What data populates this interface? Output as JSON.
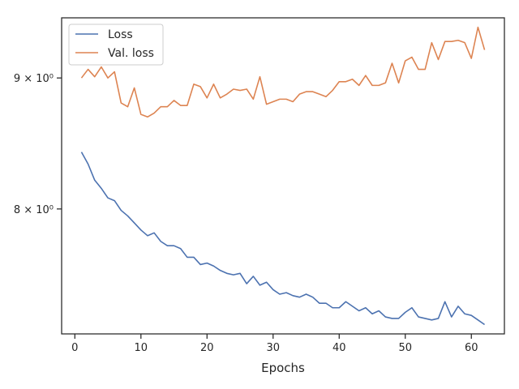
{
  "chart_data": {
    "type": "line",
    "xlabel": "Epochs",
    "ylabel": "",
    "y_scale": "log",
    "xlim": [
      -2,
      65
    ],
    "ylim": [
      7.15,
      9.5
    ],
    "grid": false,
    "legend_position": "top-left",
    "x_ticks": [
      0,
      10,
      20,
      30,
      40,
      50,
      60
    ],
    "x_tick_labels": [
      "0",
      "10",
      "20",
      "30",
      "40",
      "50",
      "60"
    ],
    "y_ticks": [
      8,
      9
    ],
    "y_tick_labels": [
      "8 × 10⁰",
      "9 × 10⁰"
    ],
    "x": [
      1,
      2,
      3,
      4,
      5,
      6,
      7,
      8,
      9,
      10,
      11,
      12,
      13,
      14,
      15,
      16,
      17,
      18,
      19,
      20,
      21,
      22,
      23,
      24,
      25,
      26,
      27,
      28,
      29,
      30,
      31,
      32,
      33,
      34,
      35,
      36,
      37,
      38,
      39,
      40,
      41,
      42,
      43,
      44,
      45,
      46,
      47,
      48,
      49,
      50,
      51,
      52,
      53,
      54,
      55,
      56,
      57,
      58,
      59,
      60,
      61,
      62
    ],
    "series": [
      {
        "name": "Loss",
        "color": "#4c72b0",
        "values": [
          8.42,
          8.33,
          8.21,
          8.15,
          8.08,
          8.06,
          7.99,
          7.95,
          7.9,
          7.85,
          7.81,
          7.83,
          7.77,
          7.74,
          7.74,
          7.72,
          7.66,
          7.66,
          7.61,
          7.62,
          7.6,
          7.57,
          7.55,
          7.54,
          7.55,
          7.48,
          7.53,
          7.47,
          7.49,
          7.44,
          7.41,
          7.42,
          7.4,
          7.39,
          7.41,
          7.39,
          7.35,
          7.35,
          7.32,
          7.32,
          7.36,
          7.33,
          7.3,
          7.32,
          7.28,
          7.3,
          7.26,
          7.25,
          7.25,
          7.29,
          7.32,
          7.26,
          7.25,
          7.24,
          7.25,
          7.36,
          7.26,
          7.33,
          7.28,
          7.27,
          7.24,
          7.21
        ]
      },
      {
        "name": "Val. loss",
        "color": "#dd8452",
        "values": [
          9.0,
          9.07,
          9.01,
          9.09,
          9.0,
          9.05,
          8.8,
          8.77,
          8.92,
          8.71,
          8.69,
          8.72,
          8.77,
          8.77,
          8.82,
          8.78,
          8.78,
          8.95,
          8.93,
          8.84,
          8.95,
          8.84,
          8.87,
          8.91,
          8.9,
          8.91,
          8.83,
          9.01,
          8.79,
          8.81,
          8.83,
          8.83,
          8.81,
          8.87,
          8.89,
          8.89,
          8.87,
          8.85,
          8.9,
          8.97,
          8.97,
          8.99,
          8.94,
          9.02,
          8.94,
          8.94,
          8.96,
          9.12,
          8.96,
          9.14,
          9.17,
          9.07,
          9.07,
          9.29,
          9.15,
          9.3,
          9.3,
          9.31,
          9.29,
          9.16,
          9.42,
          9.23
        ]
      }
    ]
  }
}
